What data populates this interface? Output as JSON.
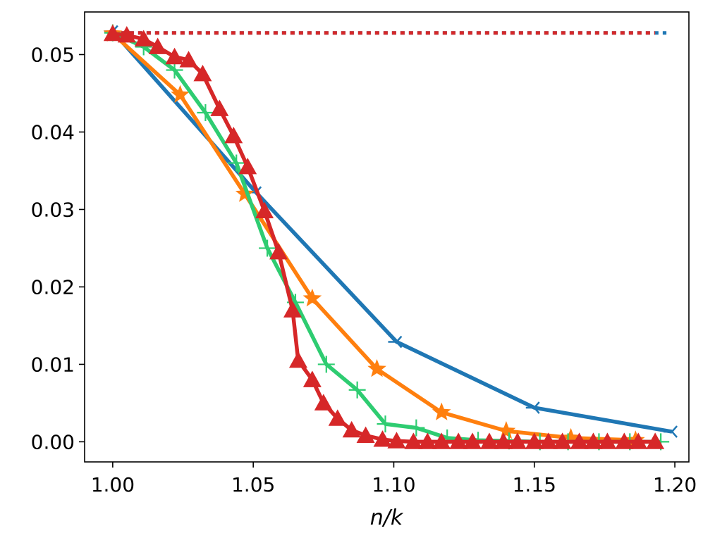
{
  "chart_data": {
    "type": "line",
    "title": "",
    "xlabel": "n/k",
    "ylabel": "",
    "xlim": [
      0.99,
      1.205
    ],
    "ylim": [
      -0.0026,
      0.0555
    ],
    "x_ticks": [
      1.0,
      1.05,
      1.1,
      1.15,
      1.2
    ],
    "x_tick_labels": [
      "1.00",
      "1.05",
      "1.10",
      "1.15",
      "1.20"
    ],
    "y_ticks": [
      0.0,
      0.01,
      0.02,
      0.03,
      0.04,
      0.05
    ],
    "y_tick_labels": [
      "0.00",
      "0.01",
      "0.02",
      "0.03",
      "0.04",
      "0.05"
    ],
    "grid": false,
    "legend": "none",
    "reference_lines": [
      {
        "color": "#1f77b4",
        "style": "dotted",
        "x": [
          1.0,
          1.197
        ],
        "y": [
          0.0528,
          0.0528
        ]
      },
      {
        "color": "#d62728",
        "style": "dotted",
        "x": [
          1.0,
          1.193
        ],
        "y": [
          0.0528,
          0.0528
        ]
      }
    ],
    "series": [
      {
        "color": "#1f77b4",
        "marker": "tri_left",
        "x": [
          1.0,
          1.051,
          1.101,
          1.15,
          1.199
        ],
        "y": [
          0.053,
          0.0322,
          0.0129,
          0.0044,
          0.0013
        ]
      },
      {
        "color": "#ff7f0e",
        "marker": "star",
        "x": [
          1.0,
          1.024,
          1.047,
          1.071,
          1.094,
          1.117,
          1.14,
          1.163,
          1.186
        ],
        "y": [
          0.0527,
          0.0448,
          0.032,
          0.0185,
          0.0094,
          0.0038,
          0.0014,
          0.0005,
          0.0002
        ]
      },
      {
        "color": "#2ecc71",
        "marker": "plus",
        "x": [
          1.0,
          1.011,
          1.022,
          1.033,
          1.044,
          1.055,
          1.065,
          1.076,
          1.087,
          1.097,
          1.108,
          1.119,
          1.13,
          1.141,
          1.152,
          1.162,
          1.173,
          1.184,
          1.195
        ],
        "y": [
          0.0528,
          0.051,
          0.048,
          0.0425,
          0.036,
          0.025,
          0.018,
          0.01,
          0.0067,
          0.0023,
          0.0018,
          0.0005,
          0.0002,
          0.0001,
          0.0,
          0.0,
          0.0,
          0.0,
          0.0
        ]
      },
      {
        "color": "#d62728",
        "marker": "triangle",
        "x": [
          1.0,
          1.005,
          1.011,
          1.016,
          1.022,
          1.027,
          1.032,
          1.038,
          1.043,
          1.048,
          1.054,
          1.059,
          1.064,
          1.066,
          1.071,
          1.075,
          1.08,
          1.085,
          1.09,
          1.096,
          1.101,
          1.107,
          1.112,
          1.117,
          1.123,
          1.128,
          1.134,
          1.139,
          1.144,
          1.15,
          1.155,
          1.16,
          1.166,
          1.171,
          1.176,
          1.182,
          1.187,
          1.193
        ],
        "y": [
          0.0527,
          0.0525,
          0.052,
          0.051,
          0.0497,
          0.0493,
          0.0475,
          0.043,
          0.0395,
          0.0355,
          0.0298,
          0.0245,
          0.017,
          0.0105,
          0.008,
          0.005,
          0.003,
          0.0015,
          0.0008,
          0.0003,
          0.0001,
          0.0,
          0.0,
          0.0,
          0.0,
          0.0,
          0.0,
          0.0,
          0.0,
          0.0,
          0.0,
          0.0,
          0.0,
          0.0,
          0.0,
          0.0,
          0.0,
          0.0
        ]
      }
    ]
  }
}
